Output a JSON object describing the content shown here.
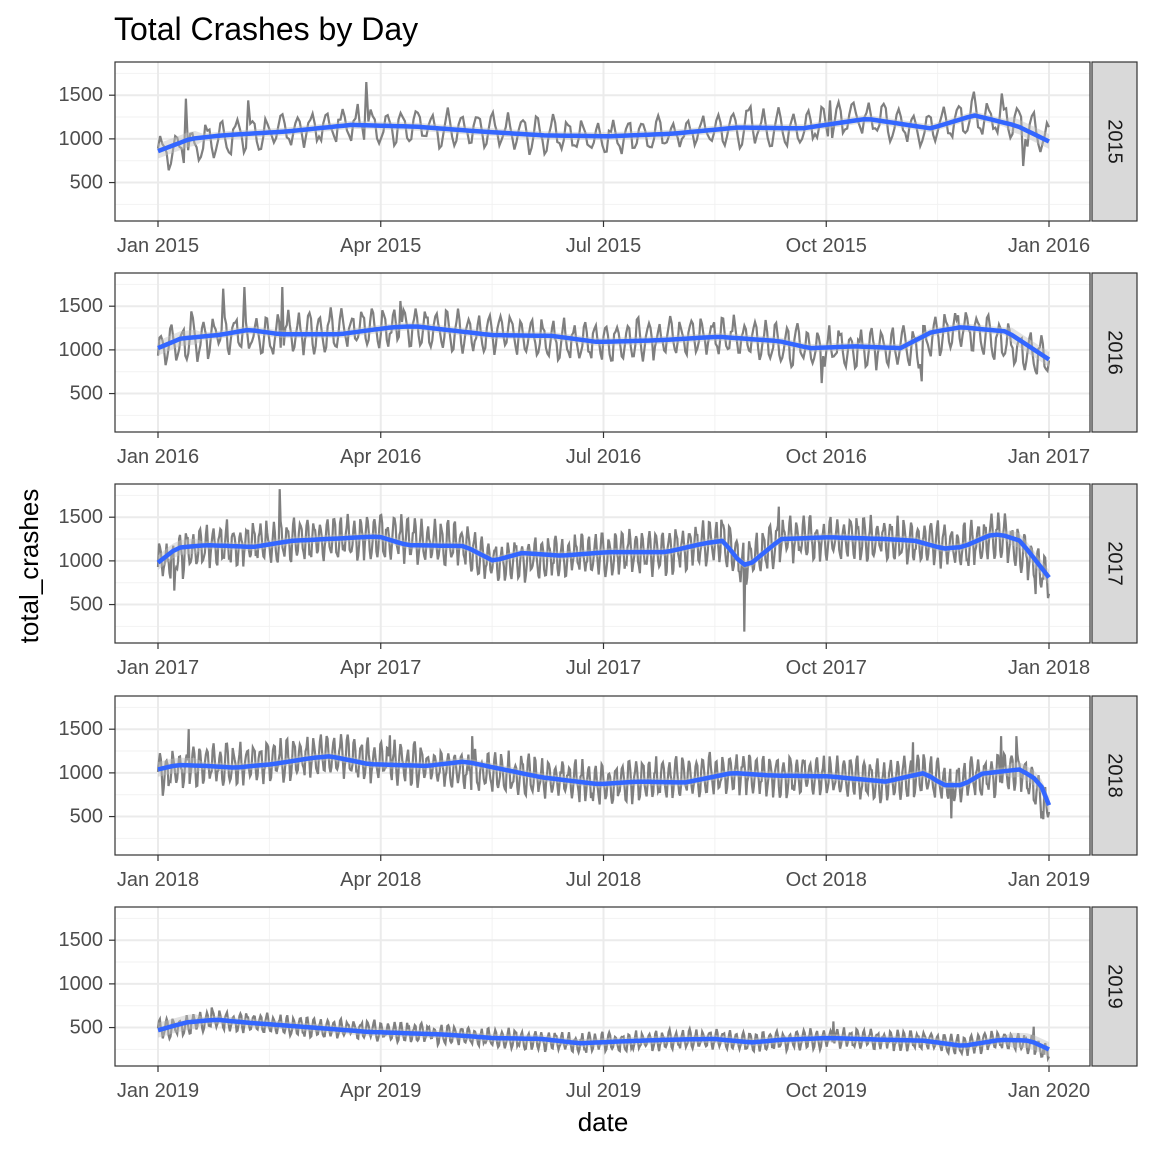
{
  "chart_data": {
    "type": "line",
    "title": "Total Crashes by Day",
    "xlabel": "date",
    "ylabel": "total_crashes",
    "ylim": [
      60,
      1880
    ],
    "y_ticks": [
      500,
      1000,
      1500
    ],
    "grid": true,
    "smooth_color": "#3366ff",
    "raw_color": "#7f7f7f",
    "band_color": "#bfbfbf",
    "facets": [
      {
        "strip": "2015",
        "x_tick_labels": [
          "Jan 2015",
          "Apr 2015",
          "Jul 2015",
          "Oct 2015",
          "Jan 2016"
        ],
        "smooth": [
          [
            0,
            860
          ],
          [
            15,
            1000
          ],
          [
            30,
            1040
          ],
          [
            60,
            1085
          ],
          [
            90,
            1160
          ],
          [
            120,
            1140
          ],
          [
            150,
            1085
          ],
          [
            180,
            1040
          ],
          [
            210,
            1030
          ],
          [
            240,
            1060
          ],
          [
            270,
            1130
          ],
          [
            300,
            1120
          ],
          [
            330,
            1230
          ],
          [
            360,
            1120
          ],
          [
            380,
            1270
          ],
          [
            400,
            1150
          ],
          [
            415,
            970
          ]
        ],
        "raw_base": [
          [
            0,
            830
          ],
          [
            30,
            1020
          ],
          [
            60,
            1090
          ],
          [
            90,
            1160
          ],
          [
            120,
            1150
          ],
          [
            150,
            1090
          ],
          [
            180,
            1050
          ],
          [
            210,
            1020
          ],
          [
            240,
            1060
          ],
          [
            270,
            1130
          ],
          [
            300,
            1130
          ],
          [
            330,
            1240
          ],
          [
            360,
            1130
          ],
          [
            380,
            1270
          ],
          [
            400,
            1180
          ],
          [
            415,
            990
          ]
        ],
        "amp": 170,
        "spikes": [
          [
            13,
            1460
          ],
          [
            42,
            1440
          ],
          [
            97,
            1650
          ],
          [
            276,
            1370
          ],
          [
            313,
            1440
          ],
          [
            380,
            1540
          ],
          [
            393,
            1520
          ],
          [
            403,
            690
          ]
        ]
      },
      {
        "strip": "2016",
        "x_tick_labels": [
          "Jan 2016",
          "Apr 2016",
          "Jul 2016",
          "Oct 2016",
          "Jan 2017"
        ],
        "smooth": [
          [
            0,
            1020
          ],
          [
            15,
            1130
          ],
          [
            40,
            1170
          ],
          [
            60,
            1230
          ],
          [
            80,
            1180
          ],
          [
            120,
            1180
          ],
          [
            155,
            1260
          ],
          [
            170,
            1270
          ],
          [
            220,
            1170
          ],
          [
            260,
            1160
          ],
          [
            290,
            1090
          ],
          [
            330,
            1110
          ],
          [
            370,
            1150
          ],
          [
            410,
            1100
          ],
          [
            430,
            1020
          ],
          [
            460,
            1040
          ],
          [
            490,
            1020
          ],
          [
            510,
            1200
          ],
          [
            530,
            1260
          ],
          [
            560,
            1210
          ],
          [
            588,
            890
          ]
        ],
        "raw_base": [
          [
            0,
            1000
          ],
          [
            40,
            1180
          ],
          [
            80,
            1180
          ],
          [
            160,
            1270
          ],
          [
            220,
            1180
          ],
          [
            290,
            1100
          ],
          [
            370,
            1160
          ],
          [
            430,
            1030
          ],
          [
            500,
            1030
          ],
          [
            530,
            1260
          ],
          [
            588,
            900
          ]
        ],
        "amp": 190,
        "spikes": [
          [
            22,
            1440
          ],
          [
            43,
            1700
          ],
          [
            57,
            1720
          ],
          [
            82,
            1720
          ],
          [
            160,
            1560
          ],
          [
            438,
            620
          ],
          [
            504,
            640
          ]
        ]
      },
      {
        "strip": "2017",
        "x_tick_labels": [
          "Jan 2017",
          "Apr 2017",
          "Jul 2017",
          "Oct 2017",
          "Jan 2018"
        ],
        "smooth": [
          [
            0,
            980
          ],
          [
            20,
            1150
          ],
          [
            50,
            1180
          ],
          [
            100,
            1160
          ],
          [
            140,
            1230
          ],
          [
            230,
            1280
          ],
          [
            260,
            1180
          ],
          [
            320,
            1170
          ],
          [
            350,
            1000
          ],
          [
            380,
            1090
          ],
          [
            420,
            1060
          ],
          [
            470,
            1100
          ],
          [
            530,
            1100
          ],
          [
            570,
            1200
          ],
          [
            590,
            1230
          ],
          [
            610,
            950
          ],
          [
            620,
            980
          ],
          [
            650,
            1250
          ],
          [
            700,
            1270
          ],
          [
            760,
            1250
          ],
          [
            790,
            1230
          ],
          [
            820,
            1140
          ],
          [
            840,
            1160
          ],
          [
            870,
            1300
          ],
          [
            880,
            1300
          ],
          [
            900,
            1230
          ],
          [
            930,
            810
          ]
        ],
        "raw_base": [
          [
            0,
            960
          ],
          [
            50,
            1180
          ],
          [
            140,
            1230
          ],
          [
            230,
            1280
          ],
          [
            320,
            1170
          ],
          [
            350,
            1000
          ],
          [
            420,
            1060
          ],
          [
            530,
            1100
          ],
          [
            590,
            1230
          ],
          [
            610,
            950
          ],
          [
            650,
            1250
          ],
          [
            760,
            1250
          ],
          [
            840,
            1160
          ],
          [
            880,
            1300
          ],
          [
            930,
            810
          ]
        ],
        "amp": 200,
        "spikes": [
          [
            17,
            660
          ],
          [
            127,
            1820
          ],
          [
            588,
            1470
          ],
          [
            612,
            190
          ],
          [
            648,
            1620
          ],
          [
            916,
            620
          ]
        ]
      },
      {
        "strip": "2018",
        "x_tick_labels": [
          "Jan 2018",
          "Apr 2018",
          "Jul 2018",
          "Oct 2018",
          "Jan 2019"
        ],
        "smooth": [
          [
            0,
            1040
          ],
          [
            20,
            1090
          ],
          [
            50,
            1080
          ],
          [
            80,
            1060
          ],
          [
            120,
            1100
          ],
          [
            160,
            1170
          ],
          [
            180,
            1190
          ],
          [
            220,
            1100
          ],
          [
            280,
            1080
          ],
          [
            320,
            1130
          ],
          [
            360,
            1040
          ],
          [
            400,
            950
          ],
          [
            460,
            870
          ],
          [
            500,
            900
          ],
          [
            550,
            890
          ],
          [
            600,
            1000
          ],
          [
            640,
            970
          ],
          [
            700,
            960
          ],
          [
            760,
            900
          ],
          [
            800,
            1000
          ],
          [
            820,
            860
          ],
          [
            840,
            860
          ],
          [
            860,
            990
          ],
          [
            900,
            1040
          ],
          [
            920,
            900
          ],
          [
            930,
            630
          ]
        ],
        "raw_base": [
          [
            0,
            1000
          ],
          [
            50,
            1080
          ],
          [
            180,
            1200
          ],
          [
            280,
            1080
          ],
          [
            400,
            950
          ],
          [
            460,
            870
          ],
          [
            600,
            1000
          ],
          [
            700,
            960
          ],
          [
            760,
            900
          ],
          [
            800,
            1000
          ],
          [
            820,
            860
          ],
          [
            900,
            1040
          ],
          [
            930,
            630
          ]
        ],
        "amp": 190,
        "spikes": [
          [
            32,
            1500
          ],
          [
            242,
            1430
          ],
          [
            328,
            1420
          ],
          [
            788,
            1350
          ],
          [
            828,
            480
          ],
          [
            880,
            1420
          ],
          [
            896,
            1420
          ],
          [
            924,
            470
          ]
        ]
      },
      {
        "strip": "2019",
        "x_tick_labels": [
          "Jan 2019",
          "Apr 2019",
          "Jul 2019",
          "Oct 2019",
          "Jan 2020"
        ],
        "smooth": [
          [
            0,
            470
          ],
          [
            30,
            560
          ],
          [
            60,
            590
          ],
          [
            100,
            550
          ],
          [
            150,
            510
          ],
          [
            220,
            450
          ],
          [
            300,
            420
          ],
          [
            350,
            380
          ],
          [
            400,
            370
          ],
          [
            440,
            320
          ],
          [
            480,
            340
          ],
          [
            530,
            360
          ],
          [
            580,
            370
          ],
          [
            620,
            330
          ],
          [
            650,
            360
          ],
          [
            700,
            380
          ],
          [
            760,
            360
          ],
          [
            800,
            350
          ],
          [
            840,
            290
          ],
          [
            880,
            360
          ],
          [
            910,
            350
          ],
          [
            930,
            250
          ]
        ],
        "raw_base": [
          [
            0,
            470
          ],
          [
            60,
            590
          ],
          [
            150,
            510
          ],
          [
            300,
            420
          ],
          [
            440,
            320
          ],
          [
            580,
            370
          ],
          [
            620,
            330
          ],
          [
            700,
            380
          ],
          [
            800,
            350
          ],
          [
            840,
            290
          ],
          [
            880,
            360
          ],
          [
            930,
            250
          ]
        ],
        "amp": 90,
        "spikes": [
          [
            56,
            730
          ],
          [
            705,
            570
          ],
          [
            914,
            510
          ],
          [
            925,
            190
          ]
        ]
      }
    ]
  }
}
